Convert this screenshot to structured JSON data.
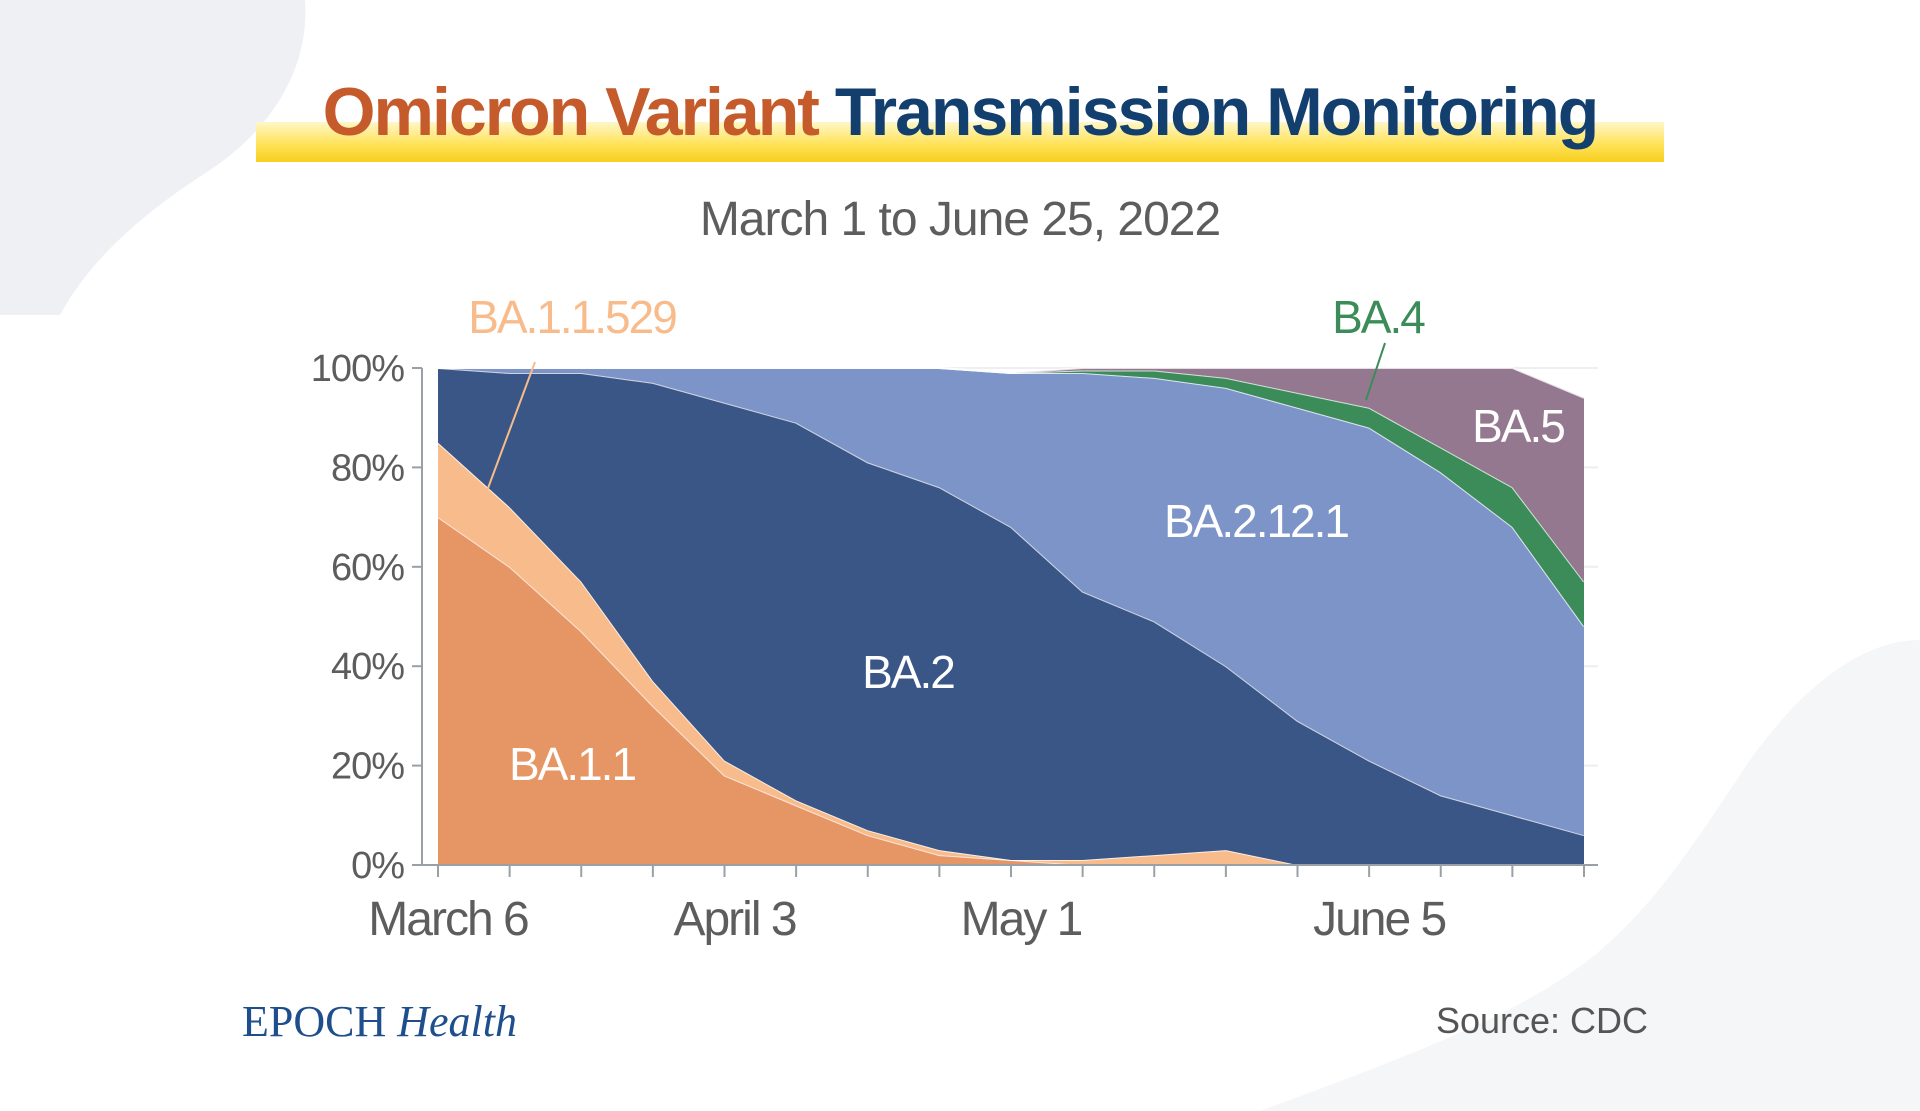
{
  "header": {
    "title_part1": "Omicron Variant",
    "title_part2": "Transmission Monitoring",
    "subtitle": "March 1 to June 25, 2022"
  },
  "footer": {
    "logo_epoch": "EPOCH",
    "logo_health": "Health",
    "source": "Source: CDC"
  },
  "colors": {
    "title_orange": "#c55a2b",
    "title_navy": "#123f6e",
    "BA.1.1": "#e69564",
    "BA.1.1.529": "#f8bc8c",
    "BA.2": "#3a5686",
    "BA.2.12.1": "#7d94c8",
    "BA.4": "#3b8c58",
    "BA.5": "#94788f",
    "axis_text": "#5d5d5d"
  },
  "chart_data": {
    "type": "area",
    "stacked": true,
    "x": [
      1,
      2,
      3,
      4,
      5,
      6,
      7,
      8,
      9,
      10,
      11,
      12,
      13,
      14,
      15,
      16,
      17
    ],
    "xtick_labels": [
      "March 6",
      "April 3",
      "May 1",
      "June 5"
    ],
    "xtick_positions": [
      1,
      5,
      9,
      14
    ],
    "ylim": [
      0,
      100
    ],
    "yticks": [
      0,
      20,
      40,
      60,
      80,
      100
    ],
    "ytick_format": "{v}%",
    "series": [
      {
        "name": "BA.1.1",
        "values": [
          70,
          60,
          47,
          32,
          18,
          12,
          6,
          2,
          1,
          0,
          0,
          0,
          0,
          0,
          0,
          0,
          0
        ]
      },
      {
        "name": "BA.1.1.529",
        "values": [
          15,
          12,
          10,
          5,
          3,
          1,
          1,
          1,
          0,
          1,
          2,
          3,
          0,
          0,
          0,
          0,
          0
        ]
      },
      {
        "name": "BA.2",
        "values": [
          15,
          27,
          42,
          60,
          72,
          76,
          74,
          73,
          67,
          54,
          47,
          37,
          29,
          21,
          14,
          10,
          6
        ]
      },
      {
        "name": "BA.2.12.1",
        "values": [
          0,
          1,
          1,
          3,
          7,
          11,
          19,
          24,
          31,
          44,
          49,
          56,
          63,
          67,
          65,
          58,
          42
        ]
      },
      {
        "name": "BA.4",
        "values": [
          0,
          0,
          0,
          0,
          0,
          0,
          0,
          0,
          0,
          0.5,
          1.5,
          2,
          3,
          4,
          5,
          8,
          9
        ]
      },
      {
        "name": "BA.5",
        "values": [
          0,
          0,
          0,
          0,
          0,
          0,
          0,
          0,
          0,
          0.5,
          0.5,
          2,
          5,
          8,
          16,
          24,
          37
        ]
      }
    ],
    "labels": {
      "BA.1.1": "BA.1.1",
      "BA.1.1.529": "BA.1.1.529",
      "BA.2": "BA.2",
      "BA.2.12.1": "BA.2.12.1",
      "BA.4": "BA.4",
      "BA.5": "BA.5"
    }
  }
}
